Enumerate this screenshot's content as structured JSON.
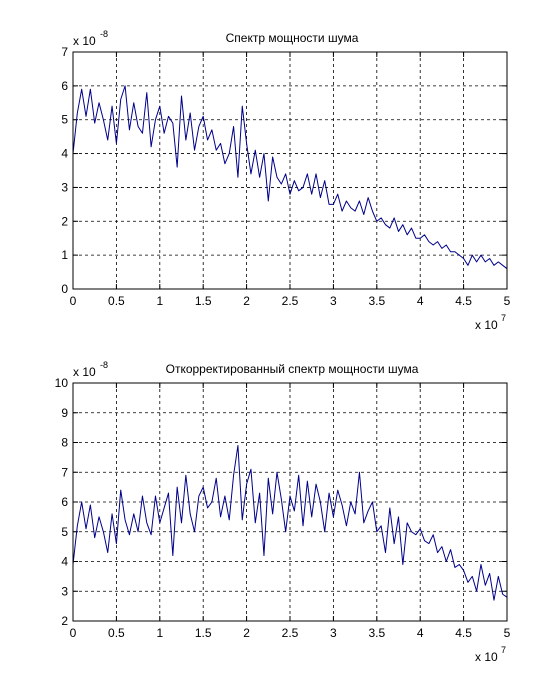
{
  "chart_data": [
    {
      "type": "line",
      "title": "Спектр мощности шума",
      "xlabel": "",
      "ylabel": "",
      "x_multiplier": "x 10",
      "x_multiplier_exp": "7",
      "y_multiplier": "x 10",
      "y_multiplier_exp": "-8",
      "xlim": [
        0,
        5
      ],
      "ylim": [
        0,
        7
      ],
      "x_ticks": [
        "0",
        "0.5",
        "1",
        "1.5",
        "2",
        "2.5",
        "3",
        "3.5",
        "4",
        "4.5",
        "5"
      ],
      "y_ticks": [
        "0",
        "1",
        "2",
        "3",
        "4",
        "5",
        "6",
        "7"
      ],
      "grid": true,
      "line_color": "#00008b",
      "series": [
        {
          "x": [
            0,
            0.05,
            0.1,
            0.15,
            0.2,
            0.25,
            0.3,
            0.35,
            0.4,
            0.45,
            0.5,
            0.55,
            0.6,
            0.65,
            0.7,
            0.75,
            0.8,
            0.85,
            0.9,
            0.95,
            1.0,
            1.05,
            1.1,
            1.15,
            1.2,
            1.25,
            1.3,
            1.35,
            1.4,
            1.45,
            1.5,
            1.55,
            1.6,
            1.65,
            1.7,
            1.75,
            1.8,
            1.85,
            1.9,
            1.95,
            2.0,
            2.05,
            2.1,
            2.15,
            2.2,
            2.25,
            2.3,
            2.35,
            2.4,
            2.45,
            2.5,
            2.55,
            2.6,
            2.65,
            2.7,
            2.75,
            2.8,
            2.85,
            2.9,
            2.95,
            3.0,
            3.05,
            3.1,
            3.15,
            3.2,
            3.25,
            3.3,
            3.35,
            3.4,
            3.45,
            3.5,
            3.55,
            3.6,
            3.65,
            3.7,
            3.75,
            3.8,
            3.85,
            3.9,
            3.95,
            4.0,
            4.05,
            4.1,
            4.15,
            4.2,
            4.25,
            4.3,
            4.35,
            4.4,
            4.45,
            4.5,
            4.55,
            4.6,
            4.65,
            4.7,
            4.75,
            4.8,
            4.85,
            4.9,
            4.95,
            5.0
          ],
          "values": [
            4.0,
            5.2,
            5.9,
            5.1,
            5.9,
            4.9,
            5.5,
            5.0,
            4.4,
            5.4,
            4.3,
            5.6,
            6.0,
            4.7,
            5.5,
            4.8,
            4.6,
            5.8,
            4.2,
            5.0,
            5.4,
            4.6,
            5.1,
            4.9,
            3.6,
            5.7,
            4.4,
            5.2,
            4.1,
            4.8,
            5.1,
            4.4,
            4.7,
            4.1,
            4.3,
            3.7,
            4.0,
            4.8,
            3.3,
            5.4,
            4.3,
            3.4,
            4.1,
            3.3,
            4.0,
            2.6,
            3.9,
            3.3,
            3.1,
            3.4,
            2.8,
            3.2,
            2.9,
            3.0,
            3.4,
            2.8,
            3.4,
            2.7,
            3.2,
            2.5,
            2.5,
            2.8,
            2.3,
            2.6,
            2.4,
            2.3,
            2.6,
            2.2,
            2.7,
            2.3,
            2.0,
            2.1,
            1.9,
            1.8,
            2.1,
            1.7,
            1.9,
            1.6,
            1.8,
            1.5,
            1.5,
            1.6,
            1.4,
            1.3,
            1.4,
            1.2,
            1.3,
            1.1,
            1.1,
            1.0,
            0.9,
            0.7,
            1.0,
            0.8,
            1.0,
            0.8,
            0.9,
            0.7,
            0.8,
            0.7,
            0.6
          ]
        }
      ]
    },
    {
      "type": "line",
      "title": "Откорректированный спектр мощности шума",
      "xlabel": "",
      "ylabel": "",
      "x_multiplier": "x 10",
      "x_multiplier_exp": "7",
      "y_multiplier": "x 10",
      "y_multiplier_exp": "-8",
      "xlim": [
        0,
        5
      ],
      "ylim": [
        2,
        10
      ],
      "x_ticks": [
        "0",
        "0.5",
        "1",
        "1.5",
        "2",
        "2.5",
        "3",
        "3.5",
        "4",
        "4.5",
        "5"
      ],
      "y_ticks": [
        "2",
        "3",
        "4",
        "5",
        "6",
        "7",
        "8",
        "9",
        "10"
      ],
      "grid": true,
      "line_color": "#00008b",
      "series": [
        {
          "x": [
            0,
            0.05,
            0.1,
            0.15,
            0.2,
            0.25,
            0.3,
            0.35,
            0.4,
            0.45,
            0.5,
            0.55,
            0.6,
            0.65,
            0.7,
            0.75,
            0.8,
            0.85,
            0.9,
            0.95,
            1.0,
            1.05,
            1.1,
            1.15,
            1.2,
            1.25,
            1.3,
            1.35,
            1.4,
            1.45,
            1.5,
            1.55,
            1.6,
            1.65,
            1.7,
            1.75,
            1.8,
            1.85,
            1.9,
            1.95,
            2.0,
            2.05,
            2.1,
            2.15,
            2.2,
            2.25,
            2.3,
            2.35,
            2.4,
            2.45,
            2.5,
            2.55,
            2.6,
            2.65,
            2.7,
            2.75,
            2.8,
            2.85,
            2.9,
            2.95,
            3.0,
            3.05,
            3.1,
            3.15,
            3.2,
            3.25,
            3.3,
            3.35,
            3.4,
            3.45,
            3.5,
            3.55,
            3.6,
            3.65,
            3.7,
            3.75,
            3.8,
            3.85,
            3.9,
            3.95,
            4.0,
            4.05,
            4.1,
            4.15,
            4.2,
            4.25,
            4.3,
            4.35,
            4.4,
            4.45,
            4.5,
            4.55,
            4.6,
            4.65,
            4.7,
            4.75,
            4.8,
            4.85,
            4.9,
            4.95,
            5.0
          ],
          "values": [
            3.9,
            5.2,
            6.0,
            5.1,
            5.9,
            4.8,
            5.5,
            5.0,
            4.3,
            5.6,
            4.6,
            6.4,
            5.4,
            4.9,
            5.6,
            5.0,
            6.2,
            5.3,
            4.9,
            6.2,
            5.3,
            5.8,
            6.3,
            4.2,
            6.5,
            5.3,
            6.9,
            5.6,
            5.0,
            6.2,
            6.5,
            5.8,
            6.0,
            6.8,
            5.5,
            6.2,
            5.4,
            6.9,
            7.9,
            5.4,
            6.6,
            7.1,
            5.3,
            6.3,
            4.2,
            6.8,
            5.6,
            7.0,
            6.1,
            5.0,
            6.2,
            5.7,
            6.9,
            5.2,
            6.7,
            5.5,
            6.6,
            6.0,
            5.0,
            6.3,
            5.5,
            6.4,
            5.9,
            5.2,
            6.0,
            5.6,
            7.0,
            5.3,
            5.7,
            6.0,
            5.0,
            5.2,
            4.3,
            5.8,
            4.6,
            5.5,
            3.9,
            5.3,
            5.0,
            4.9,
            5.1,
            4.7,
            4.6,
            4.9,
            4.3,
            4.5,
            4.0,
            4.4,
            3.8,
            3.9,
            3.7,
            3.3,
            3.5,
            3.0,
            3.9,
            3.2,
            3.6,
            2.7,
            3.5,
            2.9,
            2.8
          ]
        }
      ]
    }
  ]
}
